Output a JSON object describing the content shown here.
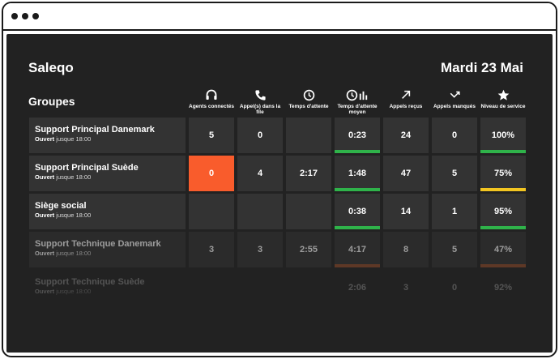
{
  "header": {
    "app_name": "Saleqo",
    "date": "Mardi 23 Mai",
    "groups_title": "Groupes"
  },
  "columns": [
    {
      "icon": "headset-icon",
      "label": "Agents connectés"
    },
    {
      "icon": "phone-icon",
      "label": "Appel(s) dans la file"
    },
    {
      "icon": "clock-icon",
      "label": "Temps d'attente"
    },
    {
      "icon": "clock-chart-icon",
      "label": "Temps d'attente moyen"
    },
    {
      "icon": "arrow-up-right-icon",
      "label": "Appels reçus"
    },
    {
      "icon": "missed-call-icon",
      "label": "Appels manqués"
    },
    {
      "icon": "star-icon",
      "label": "Niveau de service"
    }
  ],
  "colors": {
    "green": "#2fb34a",
    "yellow": "#f2c521",
    "brown": "#8f4a2a",
    "hot": "#f95c2c"
  },
  "groups": [
    {
      "name": "Support Principal Danemark",
      "status_prefix": "Ouvert",
      "status_suffix": "jusque 18:00",
      "values": [
        "5",
        "0",
        "",
        "0:23",
        "24",
        "0",
        "100%"
      ],
      "wait_bar": "green",
      "service_bar": "green",
      "hot_agents": false
    },
    {
      "name": "Support Principal Suède",
      "status_prefix": "Ouvert",
      "status_suffix": "jusque 18:00",
      "values": [
        "0",
        "4",
        "2:17",
        "1:48",
        "47",
        "5",
        "75%"
      ],
      "wait_bar": "green",
      "service_bar": "yellow",
      "hot_agents": true
    },
    {
      "name": "Siège social",
      "status_prefix": "Ouvert",
      "status_suffix": "jusque 18:00",
      "values": [
        "",
        "",
        "",
        "0:38",
        "14",
        "1",
        "95%"
      ],
      "wait_bar": "green",
      "service_bar": "green",
      "hot_agents": false
    },
    {
      "name": "Support Technique Danemark",
      "status_prefix": "Ouvert",
      "status_suffix": "jusque 18:00",
      "values": [
        "3",
        "3",
        "2:55",
        "4:17",
        "8",
        "5",
        "47%"
      ],
      "wait_bar": "brown",
      "service_bar": "brown",
      "hot_agents": false
    },
    {
      "name": "Support Technique Suède",
      "status_prefix": "Ouvert",
      "status_suffix": "jusque 18:00",
      "values": [
        "",
        "",
        "",
        "2:06",
        "3",
        "0",
        "92%"
      ],
      "wait_bar": "",
      "service_bar": "",
      "hot_agents": false
    }
  ]
}
